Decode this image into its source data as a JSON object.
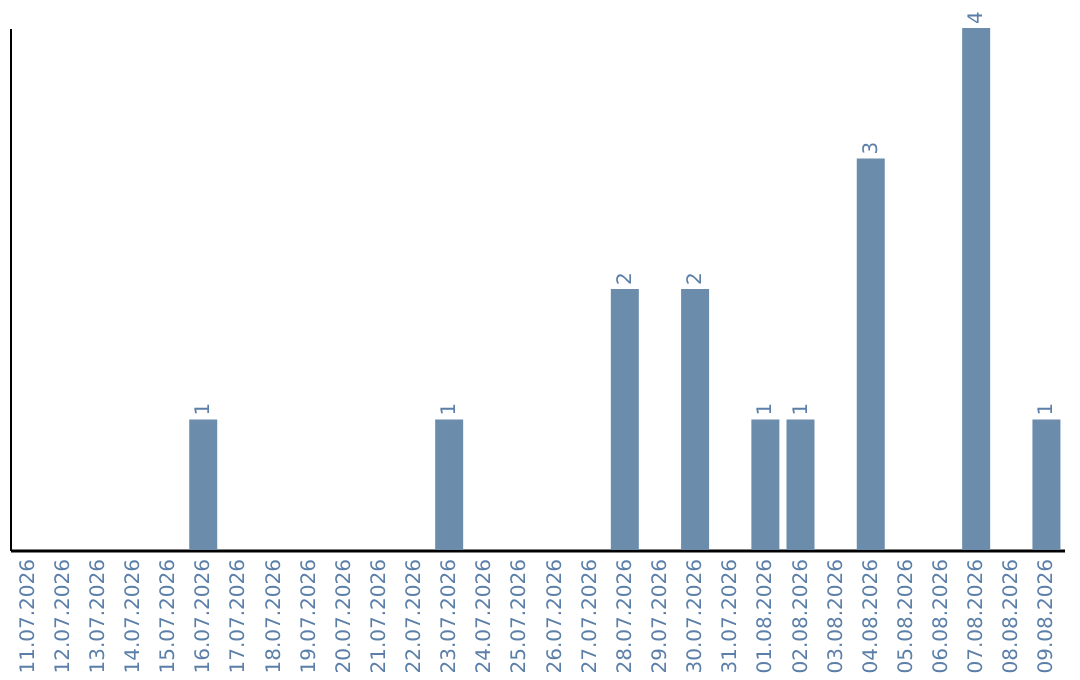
{
  "chart_data": {
    "type": "bar",
    "categories": [
      "11.07.2026",
      "12.07.2026",
      "13.07.2026",
      "14.07.2026",
      "15.07.2026",
      "16.07.2026",
      "17.07.2026",
      "18.07.2026",
      "19.07.2026",
      "20.07.2026",
      "21.07.2026",
      "22.07.2026",
      "23.07.2026",
      "24.07.2026",
      "25.07.2026",
      "26.07.2026",
      "27.07.2026",
      "28.07.2026",
      "29.07.2026",
      "30.07.2026",
      "31.07.2026",
      "01.08.2026",
      "02.08.2026",
      "03.08.2026",
      "04.08.2026",
      "05.08.2026",
      "06.08.2026",
      "07.08.2026",
      "08.08.2026",
      "09.08.2026"
    ],
    "values": [
      null,
      null,
      null,
      null,
      null,
      1,
      null,
      null,
      null,
      null,
      null,
      null,
      1,
      null,
      null,
      null,
      null,
      2,
      null,
      2,
      null,
      1,
      1,
      null,
      3,
      null,
      null,
      4,
      null,
      1
    ],
    "color": "#6b8cab",
    "data_labels": true,
    "tick_labels": "x",
    "grid": false
  }
}
